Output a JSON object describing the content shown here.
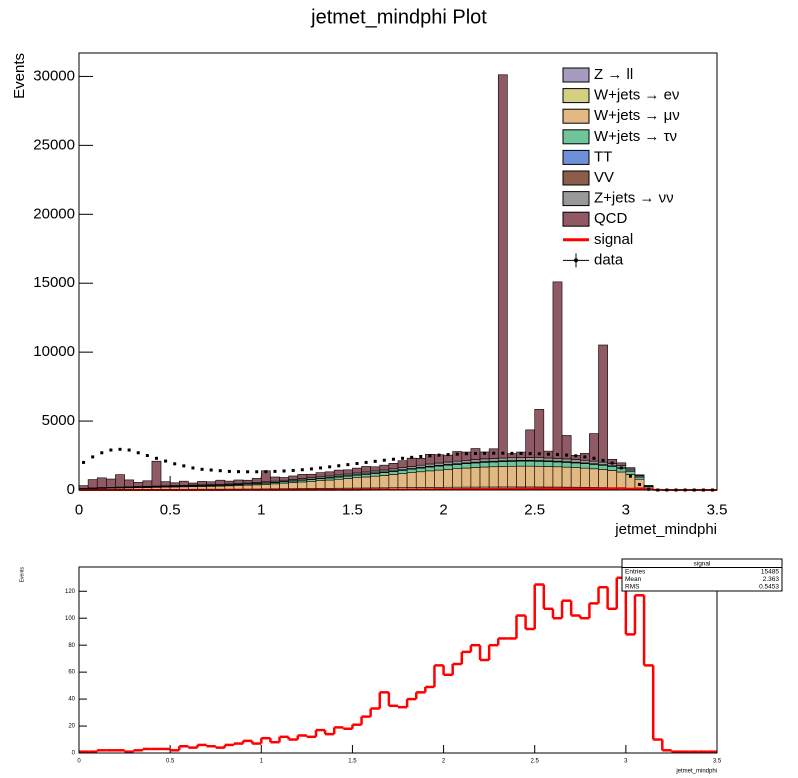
{
  "chart_data": [
    {
      "type": "stacked_histogram",
      "title": "jetmet_mindphi Plot",
      "x_label": "jetmet_mindphi",
      "y_label": "Events",
      "bins": [
        0,
        0.05,
        0.1,
        0.15,
        0.2,
        0.25,
        0.3,
        0.35,
        0.4,
        0.45,
        0.5,
        0.55,
        0.6,
        0.65,
        0.7,
        0.75,
        0.8,
        0.85,
        0.9,
        0.95,
        1,
        1.05,
        1.1,
        1.15,
        1.2,
        1.25,
        1.3,
        1.35,
        1.4,
        1.45,
        1.5,
        1.55,
        1.6,
        1.65,
        1.7,
        1.75,
        1.8,
        1.85,
        1.9,
        1.95,
        2,
        2.05,
        2.1,
        2.15,
        2.2,
        2.25,
        2.3,
        2.35,
        2.4,
        2.45,
        2.5,
        2.55,
        2.6,
        2.65,
        2.7,
        2.75,
        2.8,
        2.85,
        2.9,
        2.95,
        3,
        3.05,
        3.1,
        3.15,
        3.2,
        3.25,
        3.3,
        3.35,
        3.4,
        3.45,
        3.5
      ],
      "xlim": [
        0,
        3.5
      ],
      "xticks": [
        0,
        0.5,
        1,
        1.5,
        2,
        2.5,
        3,
        3.5
      ],
      "ylim": [
        0,
        31700
      ],
      "yticks": [
        0,
        5000,
        10000,
        15000,
        20000,
        25000,
        30000
      ],
      "series": [
        {
          "name": "Z → ll",
          "color": "#a79cbf",
          "style": "fill",
          "values": [
            5,
            8,
            10,
            10,
            10,
            12,
            12,
            12,
            14,
            14,
            14,
            15,
            15,
            15,
            16,
            16,
            18,
            18,
            20,
            20,
            22,
            22,
            24,
            24,
            26,
            26,
            28,
            28,
            30,
            30,
            32,
            32,
            34,
            34,
            36,
            36,
            38,
            38,
            40,
            40,
            40,
            40,
            42,
            42,
            42,
            42,
            42,
            42,
            42,
            42,
            40,
            40,
            40,
            38,
            38,
            36,
            34,
            32,
            30,
            26,
            20,
            12,
            4,
            0,
            0,
            0,
            0,
            0,
            0,
            0
          ]
        },
        {
          "name": "W+jets → eν",
          "color": "#d3cf83",
          "style": "fill",
          "values": [
            10,
            15,
            18,
            20,
            22,
            24,
            26,
            28,
            30,
            32,
            34,
            36,
            38,
            40,
            42,
            44,
            46,
            48,
            50,
            55,
            60,
            65,
            70,
            75,
            80,
            85,
            90,
            95,
            100,
            105,
            110,
            115,
            120,
            125,
            130,
            135,
            140,
            145,
            150,
            155,
            160,
            165,
            170,
            170,
            175,
            175,
            180,
            180,
            180,
            180,
            180,
            175,
            175,
            170,
            165,
            160,
            155,
            150,
            140,
            130,
            110,
            70,
            20,
            0,
            0,
            0,
            0,
            0,
            0,
            0
          ]
        },
        {
          "name": "W+jets → μν",
          "color": "#e2b883",
          "style": "fill",
          "values": [
            60,
            80,
            90,
            100,
            110,
            120,
            130,
            140,
            150,
            160,
            170,
            180,
            190,
            200,
            210,
            220,
            240,
            260,
            280,
            300,
            330,
            360,
            400,
            440,
            480,
            520,
            560,
            600,
            650,
            700,
            750,
            800,
            850,
            900,
            960,
            1020,
            1080,
            1140,
            1200,
            1250,
            1300,
            1340,
            1380,
            1420,
            1450,
            1470,
            1490,
            1500,
            1510,
            1510,
            1500,
            1490,
            1470,
            1450,
            1420,
            1390,
            1350,
            1300,
            1250,
            1150,
            1000,
            700,
            200,
            0,
            0,
            0,
            0,
            0,
            0,
            0
          ]
        },
        {
          "name": "W+jets → τν",
          "color": "#6fc49a",
          "style": "fill",
          "values": [
            15,
            20,
            25,
            25,
            30,
            30,
            35,
            35,
            40,
            40,
            45,
            45,
            50,
            50,
            55,
            55,
            60,
            65,
            70,
            75,
            80,
            90,
            100,
            110,
            120,
            130,
            140,
            150,
            160,
            170,
            180,
            190,
            200,
            210,
            220,
            235,
            250,
            265,
            280,
            290,
            300,
            310,
            320,
            330,
            340,
            345,
            350,
            355,
            360,
            360,
            360,
            355,
            350,
            345,
            340,
            330,
            320,
            310,
            295,
            270,
            230,
            160,
            50,
            0,
            0,
            0,
            0,
            0,
            0,
            0
          ]
        },
        {
          "name": "TT",
          "color": "#6e90d8",
          "style": "fill",
          "values": [
            2,
            2,
            3,
            3,
            3,
            4,
            4,
            4,
            5,
            5,
            5,
            6,
            6,
            6,
            7,
            7,
            8,
            8,
            9,
            9,
            10,
            10,
            11,
            11,
            12,
            12,
            13,
            13,
            14,
            14,
            15,
            15,
            16,
            16,
            17,
            17,
            18,
            18,
            19,
            19,
            20,
            20,
            20,
            20,
            20,
            20,
            20,
            20,
            20,
            20,
            20,
            19,
            19,
            18,
            18,
            17,
            16,
            15,
            14,
            12,
            10,
            6,
            2,
            0,
            0,
            0,
            0,
            0,
            0,
            0
          ]
        },
        {
          "name": "VV",
          "color": "#8b5e4a",
          "style": "fill",
          "values": [
            4,
            5,
            5,
            6,
            6,
            7,
            7,
            8,
            8,
            9,
            9,
            10,
            10,
            11,
            11,
            12,
            12,
            13,
            13,
            14,
            15,
            16,
            17,
            18,
            19,
            20,
            21,
            22,
            23,
            24,
            25,
            26,
            27,
            28,
            29,
            30,
            31,
            32,
            33,
            34,
            35,
            35,
            36,
            36,
            37,
            37,
            38,
            38,
            38,
            38,
            38,
            37,
            37,
            36,
            35,
            34,
            33,
            32,
            30,
            27,
            22,
            14,
            4,
            0,
            0,
            0,
            0,
            0,
            0,
            0
          ]
        },
        {
          "name": "Z+jets → νν",
          "color": "#999999",
          "style": "fill",
          "values": [
            20,
            25,
            30,
            32,
            34,
            36,
            38,
            40,
            42,
            44,
            46,
            48,
            50,
            52,
            55,
            58,
            61,
            64,
            67,
            70,
            75,
            80,
            85,
            90,
            95,
            100,
            105,
            110,
            115,
            120,
            125,
            130,
            135,
            140,
            145,
            150,
            155,
            160,
            165,
            170,
            175,
            180,
            185,
            190,
            195,
            200,
            200,
            205,
            205,
            210,
            210,
            205,
            205,
            200,
            195,
            190,
            185,
            180,
            170,
            155,
            130,
            90,
            30,
            0,
            0,
            0,
            0,
            0,
            0,
            0
          ]
        },
        {
          "name": "QCD",
          "color": "#8f5a63",
          "style": "fill",
          "values": [
            200,
            600,
            700,
            600,
            900,
            500,
            300,
            400,
            1800,
            300,
            200,
            300,
            150,
            250,
            200,
            300,
            200,
            250,
            200,
            300,
            800,
            300,
            200,
            250,
            300,
            250,
            300,
            300,
            350,
            300,
            350,
            400,
            300,
            350,
            400,
            500,
            600,
            500,
            700,
            600,
            500,
            700,
            600,
            800,
            500,
            700,
            27800,
            300,
            400,
            2000,
            3500,
            500,
            12800,
            1700,
            300,
            500,
            2000,
            8500,
            300,
            200,
            100,
            50,
            20,
            0,
            0,
            0,
            0,
            0,
            0,
            0
          ]
        },
        {
          "name": "signal",
          "color": "#ff0000",
          "style": "line",
          "values": [
            1,
            1,
            2,
            2,
            2,
            1,
            2,
            3,
            3,
            3,
            2,
            5,
            4,
            6,
            5,
            4,
            6,
            7,
            9,
            7,
            11,
            8,
            12,
            10,
            13,
            12,
            17,
            14,
            19,
            18,
            21,
            27,
            33,
            45,
            35,
            34,
            40,
            45,
            49,
            65,
            58,
            66,
            75,
            80,
            69,
            80,
            85,
            85,
            102,
            92,
            125,
            107,
            100,
            113,
            102,
            100,
            111,
            123,
            107,
            130,
            88,
            117,
            65,
            10,
            2,
            1,
            1,
            1,
            1,
            1
          ]
        },
        {
          "name": "data",
          "color": "#000000",
          "style": "points",
          "values": [
            2000,
            2400,
            2700,
            2900,
            2950,
            2900,
            2700,
            2500,
            2300,
            2100,
            1900,
            1750,
            1600,
            1500,
            1450,
            1400,
            1350,
            1330,
            1320,
            1320,
            1330,
            1350,
            1380,
            1420,
            1470,
            1530,
            1600,
            1680,
            1760,
            1840,
            1920,
            2000,
            2080,
            2160,
            2230,
            2300,
            2370,
            2430,
            2480,
            2530,
            2570,
            2600,
            2630,
            2650,
            2660,
            2670,
            2670,
            2660,
            2650,
            2640,
            2630,
            2600,
            2570,
            2530,
            2480,
            2400,
            2300,
            2150,
            1950,
            1600,
            1000,
            400,
            50,
            0,
            0,
            0,
            0,
            0,
            0,
            0
          ]
        }
      ]
    },
    {
      "type": "histogram",
      "x_label": "jetmet_mindphi",
      "y_label": "Events",
      "color": "#ff0000",
      "bins": [
        0,
        0.05,
        0.1,
        0.15,
        0.2,
        0.25,
        0.3,
        0.35,
        0.4,
        0.45,
        0.5,
        0.55,
        0.6,
        0.65,
        0.7,
        0.75,
        0.8,
        0.85,
        0.9,
        0.95,
        1,
        1.05,
        1.1,
        1.15,
        1.2,
        1.25,
        1.3,
        1.35,
        1.4,
        1.45,
        1.5,
        1.55,
        1.6,
        1.65,
        1.7,
        1.75,
        1.8,
        1.85,
        1.9,
        1.95,
        2,
        2.05,
        2.1,
        2.15,
        2.2,
        2.25,
        2.3,
        2.35,
        2.4,
        2.45,
        2.5,
        2.55,
        2.6,
        2.65,
        2.7,
        2.75,
        2.8,
        2.85,
        2.9,
        2.95,
        3,
        3.05,
        3.1,
        3.15,
        3.2,
        3.25,
        3.3,
        3.35,
        3.4,
        3.45,
        3.5
      ],
      "values": [
        1,
        1,
        2,
        2,
        2,
        1,
        2,
        3,
        3,
        3,
        2,
        5,
        4,
        6,
        5,
        4,
        6,
        7,
        9,
        7,
        11,
        8,
        12,
        10,
        13,
        12,
        17,
        14,
        19,
        18,
        21,
        27,
        33,
        45,
        35,
        34,
        40,
        45,
        49,
        65,
        58,
        66,
        75,
        80,
        69,
        80,
        85,
        85,
        102,
        92,
        125,
        107,
        100,
        113,
        102,
        100,
        111,
        123,
        107,
        130,
        88,
        117,
        65,
        10,
        2,
        1,
        1,
        1,
        1,
        1
      ],
      "xlim": [
        0,
        3.5
      ],
      "xticks": [
        0,
        0.5,
        1,
        1.5,
        2,
        2.5,
        3,
        3.5
      ],
      "ylim": [
        0,
        138
      ],
      "yticks": [
        0,
        20,
        40,
        60,
        80,
        100,
        120
      ],
      "stats": {
        "title": "signal",
        "rows": [
          {
            "label": "Entries",
            "value": 15485
          },
          {
            "label": "Mean",
            "value": 2.363
          },
          {
            "label": "RMS",
            "value": 0.5453
          }
        ]
      }
    }
  ]
}
